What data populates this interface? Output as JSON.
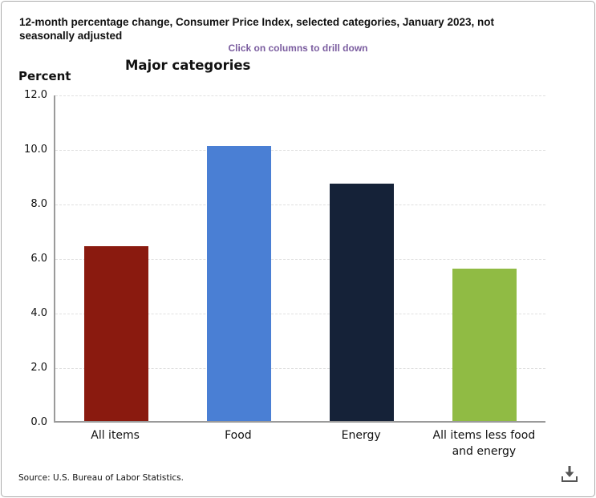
{
  "header": {
    "title": "12-month percentage change, Consumer Price Index, selected categories, January 2023, not seasonally adjusted",
    "drilldown_hint": "Click on columns to drill down",
    "chart_title": "Major categories",
    "axis_unit_label": "Percent"
  },
  "chart_data": {
    "type": "bar",
    "title": "Major categories",
    "categories": [
      "All items",
      "Food",
      "Energy",
      "All items less food and energy"
    ],
    "values": [
      6.4,
      10.1,
      8.7,
      5.6
    ],
    "bar_colors": [
      "#8a1a0f",
      "#4a7fd4",
      "#152238",
      "#90bb44"
    ],
    "xlabel": "",
    "ylabel": "Percent",
    "ylim": [
      0,
      12
    ],
    "ytick_step": 2,
    "ytick_labels": [
      "0.0",
      "2.0",
      "4.0",
      "6.0",
      "8.0",
      "10.0",
      "12.0"
    ],
    "grid": "horizontal-dashed",
    "legend": "none"
  },
  "footer": {
    "source": "Source: U.S. Bureau of Labor Statistics.",
    "download_icon": "download-icon"
  },
  "colors": {
    "hint_text": "#7a5c9f",
    "axis_line": "#9a9a9a",
    "gridline": "#e0e0e0",
    "icon_gray": "#555555"
  }
}
